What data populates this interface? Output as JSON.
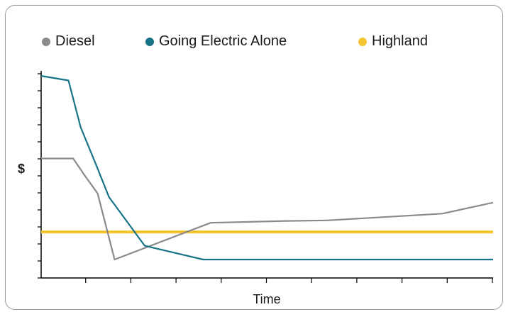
{
  "chart_data": {
    "type": "line",
    "title": "",
    "xlabel": "Time",
    "ylabel": "$",
    "xlim": [
      0,
      24
    ],
    "ylim": [
      0,
      100
    ],
    "grid": false,
    "legend_position": "top",
    "series": [
      {
        "name": "Diesel",
        "color": "#8a8a8a",
        "x": [
          0,
          1.7,
          2.3,
          3.0,
          3.9,
          9.0,
          13.0,
          15.2,
          21.3,
          24
        ],
        "y": [
          55,
          55,
          46,
          36,
          0,
          20,
          21,
          21.3,
          25,
          31
        ]
      },
      {
        "name": "Going Electric Alone",
        "color": "#177387",
        "x": [
          0,
          1.45,
          2.1,
          2.9,
          3.6,
          5.5,
          8.6,
          24
        ],
        "y": [
          100,
          97.5,
          72,
          52,
          34,
          7.5,
          0,
          0
        ]
      },
      {
        "name": "Highland",
        "color": "#f5c531",
        "x": [
          0,
          24
        ],
        "y": [
          15,
          15
        ]
      }
    ]
  }
}
